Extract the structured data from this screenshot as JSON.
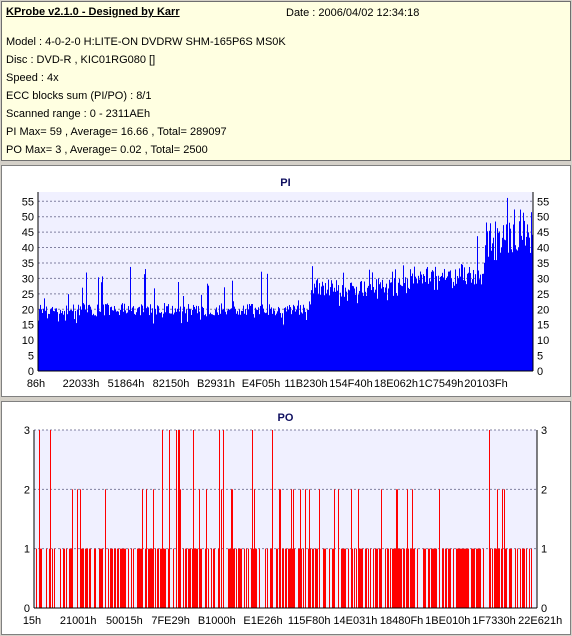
{
  "info": {
    "title": "KProbe v2.1.0 - Designed by Karr",
    "date": "Date : 2006/04/02 12:34:18",
    "lines": [
      "Model : 4-0-2-0 H:LITE-ON DVDRW SHM-165P6S MS0K",
      "Disc : DVD-R , KIC01RG080   []",
      "Speed : 4x",
      "ECC blocks sum (PI/PO) : 8/1",
      "Scanned range : 0 - 2311AEh",
      "PI Max= 59 , Average= 16.66 , Total= 289097",
      "PO Max= 3 , Average= 0.02 , Total= 2500"
    ]
  },
  "chart_data": [
    {
      "type": "bar",
      "title": "PI",
      "ylim": [
        0,
        58
      ],
      "yticks": [
        0,
        5,
        10,
        15,
        20,
        25,
        30,
        35,
        40,
        45,
        50,
        55
      ],
      "xticks": [
        "86h",
        "22033h",
        "51864h",
        "82150h",
        "B2931h",
        "E4F05h",
        "11B230h",
        "154F40h",
        "18E062h",
        "1C7549h",
        "20103Fh"
      ],
      "color": "#0000ff",
      "series": [
        {
          "segments": [
            {
              "x_range": [
                0,
                0.55
              ],
              "typical": [
                18,
                22
              ],
              "peaks_to": 36
            },
            {
              "x_range": [
                0.55,
                0.75
              ],
              "typical": [
                24,
                30
              ],
              "peaks_to": 40
            },
            {
              "x_range": [
                0.75,
                0.9
              ],
              "typical": [
                28,
                34
              ],
              "peaks_to": 48
            },
            {
              "x_range": [
                0.9,
                1.0
              ],
              "typical": [
                34,
                48
              ],
              "peaks_to": 57
            }
          ]
        }
      ]
    },
    {
      "type": "bar",
      "title": "PO",
      "ylim": [
        0,
        3
      ],
      "yticks": [
        0,
        1,
        2,
        3
      ],
      "xticks": [
        "15h",
        "21001h",
        "50015h",
        "7FE29h",
        "B1000h",
        "E1E26h",
        "115F80h",
        "14E031h",
        "18480Fh",
        "1BE010h",
        "1F7330h",
        "22E621h"
      ],
      "color": "#ff0000"
    }
  ]
}
